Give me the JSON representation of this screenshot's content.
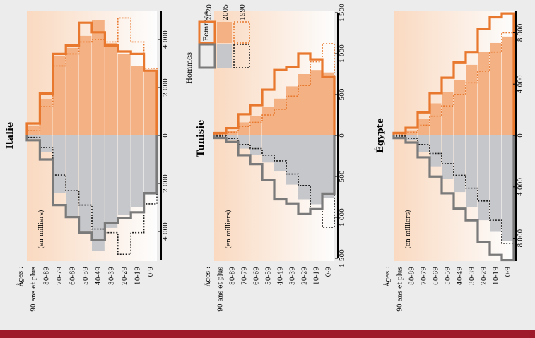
{
  "age_axis_title": "Âges :",
  "age_groups": [
    "90 ans et plus",
    "80-89",
    "70-79",
    "60-69",
    "50-59",
    "40-49",
    "30-39",
    "20-29",
    "10-19",
    "0-9"
  ],
  "unit_note": "(en milliers)",
  "legend": {
    "men_label": "Hommes",
    "women_label": "Femmes",
    "years": [
      "2020",
      "2005",
      "1990"
    ]
  },
  "colors": {
    "women_fill": "#f4b183",
    "women_line": "#e8782d",
    "men_fill": "#c5c7cb",
    "men_line_2020": "#7a7a7a",
    "men_line_1990": "#1a1a1a",
    "panel_tint": "#fbdcc4",
    "bottom_bar": "#9e1b2b"
  },
  "chart_data": [
    {
      "type": "population_pyramid",
      "title": "Italie",
      "categories": [
        "90 ans et plus",
        "80-89",
        "70-79",
        "60-69",
        "50-59",
        "40-49",
        "30-39",
        "20-29",
        "10-19",
        "0-9"
      ],
      "axis_max": 5200,
      "tick_labels_women": [
        "0",
        "2 000",
        "4 000"
      ],
      "tick_labels_men": [
        "0",
        "2 000",
        "4 000"
      ],
      "tick_values": [
        0,
        2000,
        4000
      ],
      "series": [
        {
          "name": "2020",
          "sex": "women",
          "values": [
            500,
            1750,
            3400,
            3750,
            4700,
            4300,
            3750,
            3500,
            3400,
            2700
          ]
        },
        {
          "name": "2005",
          "sex": "women",
          "values": [
            400,
            1500,
            3300,
            3650,
            4150,
            4800,
            3850,
            3400,
            2900,
            2700
          ]
        },
        {
          "name": "1990",
          "sex": "women",
          "values": [
            200,
            1200,
            2900,
            3400,
            3900,
            4000,
            3900,
            4900,
            3900,
            2800
          ]
        },
        {
          "name": "2020",
          "sex": "men",
          "values": [
            200,
            1000,
            2900,
            3400,
            4050,
            4350,
            3650,
            3450,
            3200,
            2400
          ]
        },
        {
          "name": "2005",
          "sex": "men",
          "values": [
            150,
            700,
            2400,
            3400,
            4000,
            4800,
            3850,
            3300,
            3000,
            2500
          ]
        },
        {
          "name": "1990",
          "sex": "men",
          "values": [
            80,
            500,
            1650,
            2300,
            2900,
            3900,
            4050,
            4950,
            4050,
            2850
          ]
        }
      ]
    },
    {
      "type": "population_pyramid",
      "title": "Tunisie",
      "categories": [
        "90 ans et plus",
        "80-89",
        "70-79",
        "60-69",
        "50-59",
        "40-49",
        "30-39",
        "20-29",
        "10-19",
        "0-9"
      ],
      "axis_max": 1500,
      "tick_labels_women": [
        "0",
        "500",
        "1 000",
        "1 500"
      ],
      "tick_labels_men": [
        "500",
        "1 000",
        "1 500"
      ],
      "tick_values": [
        0,
        500,
        1000,
        1500
      ],
      "series": [
        {
          "name": "2020",
          "sex": "women",
          "values": [
            30,
            90,
            260,
            370,
            560,
            800,
            840,
            1000,
            930,
            720
          ]
        },
        {
          "name": "2005",
          "sex": "women",
          "values": [
            15,
            60,
            160,
            240,
            350,
            450,
            600,
            750,
            800,
            770
          ]
        },
        {
          "name": "1990",
          "sex": "women",
          "values": [
            10,
            40,
            110,
            160,
            250,
            320,
            480,
            610,
            900,
            1120
          ]
        },
        {
          "name": "2020",
          "sex": "men",
          "values": [
            30,
            80,
            240,
            350,
            540,
            780,
            830,
            960,
            900,
            710
          ]
        },
        {
          "name": "2005",
          "sex": "men",
          "values": [
            15,
            55,
            160,
            240,
            330,
            440,
            600,
            780,
            840,
            760
          ]
        },
        {
          "name": "1990",
          "sex": "men",
          "values": [
            8,
            35,
            110,
            160,
            240,
            310,
            470,
            610,
            900,
            1120
          ]
        }
      ]
    },
    {
      "type": "population_pyramid",
      "title": "Égypte",
      "categories": [
        "90 ans et plus",
        "80-89",
        "70-79",
        "60-69",
        "50-59",
        "40-49",
        "30-39",
        "20-29",
        "10-19",
        "0-9"
      ],
      "axis_max": 10000,
      "tick_labels_women": [
        "0",
        "4 000",
        "8 000"
      ],
      "tick_labels_men": [
        "4 000",
        "8 000"
      ],
      "tick_values": [
        0,
        4000,
        8000
      ],
      "series": [
        {
          "name": "2020",
          "sex": "women",
          "values": [
            200,
            600,
            1800,
            3300,
            4500,
            5700,
            6500,
            8300,
            9200,
            9500
          ]
        },
        {
          "name": "2005",
          "sex": "women",
          "values": [
            100,
            400,
            1300,
            2500,
            3400,
            4300,
            5500,
            6500,
            7200,
            7700
          ]
        },
        {
          "name": "1990",
          "sex": "women",
          "values": [
            50,
            250,
            800,
            1500,
            2300,
            3200,
            4100,
            5000,
            6500,
            8000
          ]
        },
        {
          "name": "2020",
          "sex": "men",
          "values": [
            200,
            550,
            1700,
            3200,
            4500,
            5700,
            6600,
            8300,
            9300,
            9700
          ]
        },
        {
          "name": "2005",
          "sex": "men",
          "values": [
            100,
            400,
            1300,
            2400,
            3400,
            4400,
            5600,
            6600,
            7500,
            8200
          ]
        },
        {
          "name": "1990",
          "sex": "men",
          "values": [
            50,
            220,
            700,
            1400,
            2200,
            3100,
            4100,
            5100,
            6600,
            8400
          ]
        }
      ]
    }
  ]
}
